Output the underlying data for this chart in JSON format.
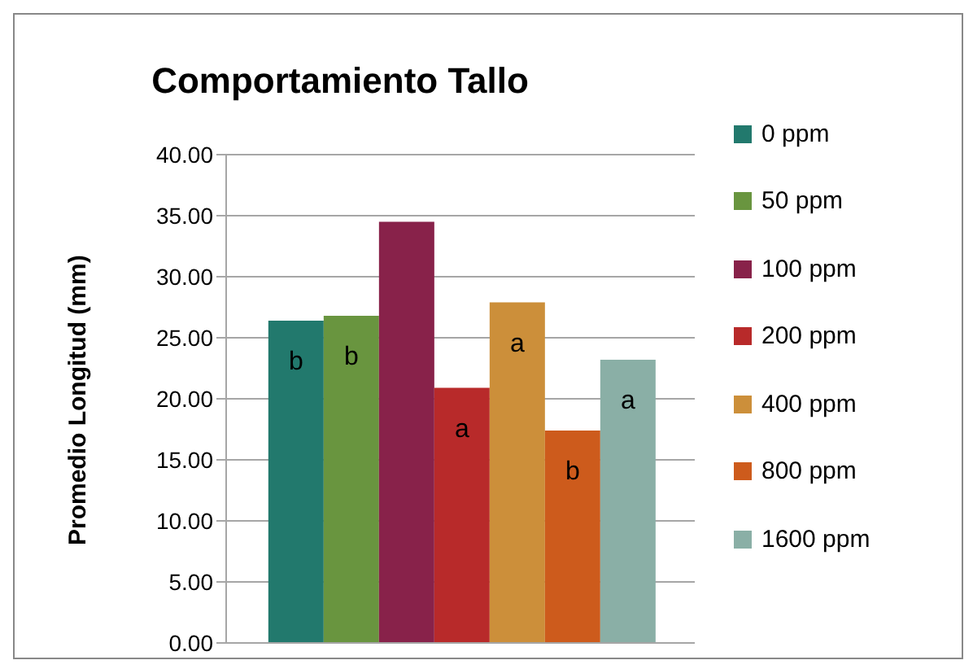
{
  "chart_data": {
    "type": "bar",
    "title": "Comportamiento Tallo",
    "ylabel": "Promedio Longitud (mm)",
    "categories": [
      null
    ],
    "series": [
      {
        "name": "0 ppm",
        "color": "#22796d",
        "values": [
          26.4
        ],
        "value_labels": [
          "b"
        ]
      },
      {
        "name": "50 ppm",
        "color": "#69953f",
        "values": [
          26.8
        ],
        "value_labels": [
          "b"
        ]
      },
      {
        "name": "100 ppm",
        "color": "#88224a",
        "values": [
          34.5
        ],
        "value_labels": [
          null
        ]
      },
      {
        "name": "200 ppm",
        "color": "#b82a2a",
        "values": [
          20.9
        ],
        "value_labels": [
          "a"
        ]
      },
      {
        "name": "400 ppm",
        "color": "#cc8f3a",
        "values": [
          27.9
        ],
        "value_labels": [
          "a"
        ]
      },
      {
        "name": "800 ppm",
        "color": "#cd5b1c",
        "values": [
          17.4
        ],
        "value_labels": [
          "b"
        ]
      },
      {
        "name": "1600 ppm",
        "color": "#8aafa6",
        "values": [
          23.2
        ],
        "value_labels": [
          "a"
        ]
      }
    ],
    "ylim": [
      0,
      40
    ],
    "yticks": [
      {
        "value": 0,
        "label": "0.00"
      },
      {
        "value": 5,
        "label": "5.00"
      },
      {
        "value": 10,
        "label": "10.00"
      },
      {
        "value": 15,
        "label": "15.00"
      },
      {
        "value": 20,
        "label": "20.00"
      },
      {
        "value": 25,
        "label": "25.00"
      },
      {
        "value": 30,
        "label": "30.00"
      },
      {
        "value": 35,
        "label": "35.00"
      },
      {
        "value": 40,
        "label": "40.00"
      }
    ],
    "grid": "y",
    "legend": "right",
    "tick_labels": "y"
  }
}
